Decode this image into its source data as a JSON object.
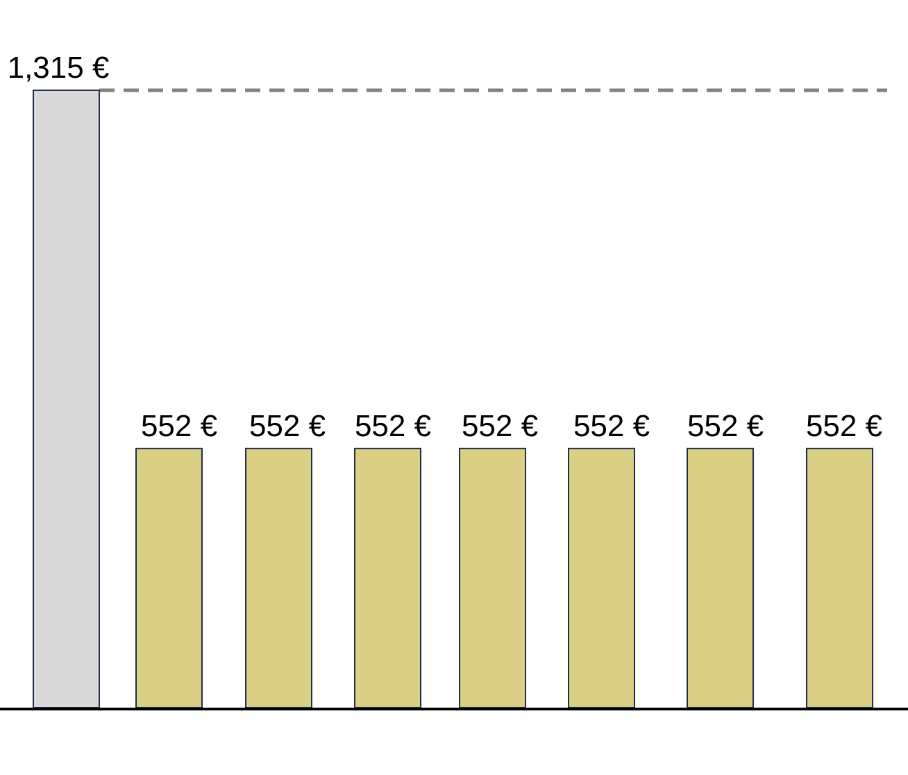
{
  "chart_data": {
    "type": "bar",
    "categories": [
      "",
      "",
      "",
      "",
      "",
      "",
      "",
      ""
    ],
    "values": [
      1315,
      552,
      552,
      552,
      552,
      552,
      552,
      552
    ],
    "data_labels": [
      "1,315 €",
      "552 €",
      "552 €",
      "552 €",
      "552 €",
      "552 €",
      "552 €",
      "552 €"
    ],
    "ylim": [
      0,
      1315
    ],
    "reference_line": {
      "value": 1315,
      "style": "dashed"
    },
    "grid": false,
    "legend": "none",
    "colors": {
      "first_bar": "#d9d9d9",
      "other_bars": "#dbcf85",
      "bar_stroke": "#1f2d4d",
      "reference_line": "#808080",
      "baseline": "#000000"
    }
  }
}
